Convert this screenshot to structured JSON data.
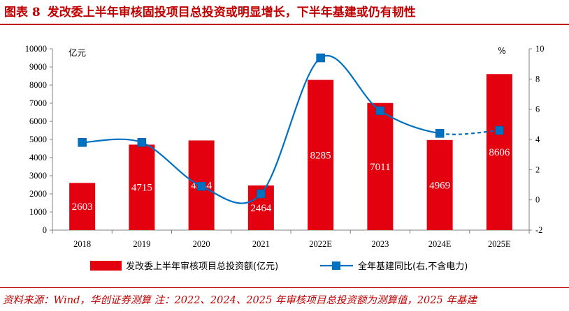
{
  "figure": {
    "title_prefix": "图表 8",
    "title": "发改委上半年审核固投项目总投资或明显增长，下半年基建或仍有韧性",
    "source": "资料来源：Wind，华创证券测算 注：2022、2024、2025 年审核项目总投资额为测算值，2025 年基建"
  },
  "chart_data": {
    "type": "bar",
    "categories": [
      "2018",
      "2019",
      "2020",
      "2021",
      "2022E",
      "2023",
      "2024E",
      "2025E"
    ],
    "series": [
      {
        "name": "发改委上半年审核项目总投资额(亿元)",
        "type": "bar",
        "axis": "left",
        "color": "#E3000F",
        "values": [
          2603,
          4715,
          4944,
          2464,
          8285,
          7011,
          4969,
          8606
        ],
        "labels": [
          "2603",
          "4715",
          "4944",
          "2464",
          "8285",
          "7011",
          "4969",
          "8606"
        ]
      },
      {
        "name": "全年基建同比(右,不含电力)",
        "type": "line",
        "axis": "right",
        "color": "#0070C0",
        "values": [
          3.8,
          3.8,
          0.9,
          0.4,
          9.4,
          5.9,
          4.4,
          4.6
        ],
        "dashed_last_segment": true
      }
    ],
    "y_left": {
      "unit": "亿元",
      "min": 0,
      "max": 10000,
      "step": 1000,
      "ticks": [
        "0",
        "1000",
        "2000",
        "3000",
        "4000",
        "5000",
        "6000",
        "7000",
        "8000",
        "9000",
        "10000"
      ]
    },
    "y_right": {
      "unit": "%",
      "min": -2,
      "max": 10,
      "step": 2,
      "ticks": [
        "-2",
        "0",
        "2",
        "4",
        "6",
        "8",
        "10"
      ]
    },
    "grid": false,
    "legend_position": "bottom"
  }
}
